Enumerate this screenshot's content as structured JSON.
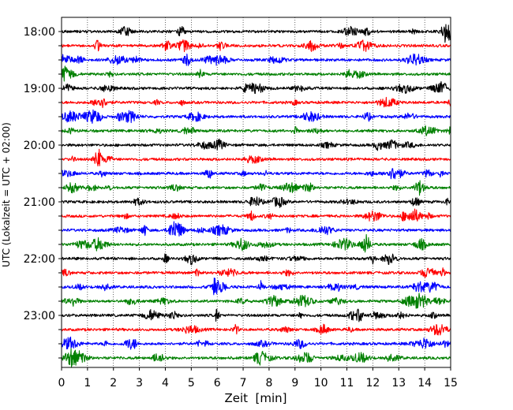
{
  "chart_data": {
    "type": "line",
    "title": "",
    "xlabel": "Zeit  [min]",
    "ylabel": "UTC (Lokalzeit = UTC + 02:00)",
    "xlim": [
      0,
      15
    ],
    "x_ticks": [
      "0",
      "1",
      "2",
      "3",
      "4",
      "5",
      "6",
      "7",
      "8",
      "9",
      "10",
      "11",
      "12",
      "13",
      "14",
      "15"
    ],
    "y_tick_labels": [
      "18:00",
      "19:00",
      "20:00",
      "21:00",
      "22:00",
      "23:00"
    ],
    "grid": "vertical dotted lines at each minute",
    "trace_interval_minutes": 15,
    "trace_colors": [
      "#000000",
      "#ff0000",
      "#0000ff",
      "#008000"
    ],
    "traces": [
      {
        "start": "18:00",
        "color": "#000000"
      },
      {
        "start": "18:15",
        "color": "#ff0000"
      },
      {
        "start": "18:30",
        "color": "#0000ff"
      },
      {
        "start": "18:45",
        "color": "#008000"
      },
      {
        "start": "19:00",
        "color": "#000000"
      },
      {
        "start": "19:15",
        "color": "#ff0000"
      },
      {
        "start": "19:30",
        "color": "#0000ff"
      },
      {
        "start": "19:45",
        "color": "#008000"
      },
      {
        "start": "20:00",
        "color": "#000000"
      },
      {
        "start": "20:15",
        "color": "#ff0000"
      },
      {
        "start": "20:30",
        "color": "#0000ff"
      },
      {
        "start": "20:45",
        "color": "#008000"
      },
      {
        "start": "21:00",
        "color": "#000000"
      },
      {
        "start": "21:15",
        "color": "#ff0000"
      },
      {
        "start": "21:30",
        "color": "#0000ff"
      },
      {
        "start": "21:45",
        "color": "#008000"
      },
      {
        "start": "22:00",
        "color": "#000000"
      },
      {
        "start": "22:15",
        "color": "#ff0000"
      },
      {
        "start": "22:30",
        "color": "#0000ff"
      },
      {
        "start": "22:45",
        "color": "#008000"
      },
      {
        "start": "23:00",
        "color": "#000000"
      },
      {
        "start": "23:15",
        "color": "#ff0000"
      },
      {
        "start": "23:30",
        "color": "#0000ff"
      },
      {
        "start": "23:45",
        "color": "#008000"
      }
    ]
  }
}
